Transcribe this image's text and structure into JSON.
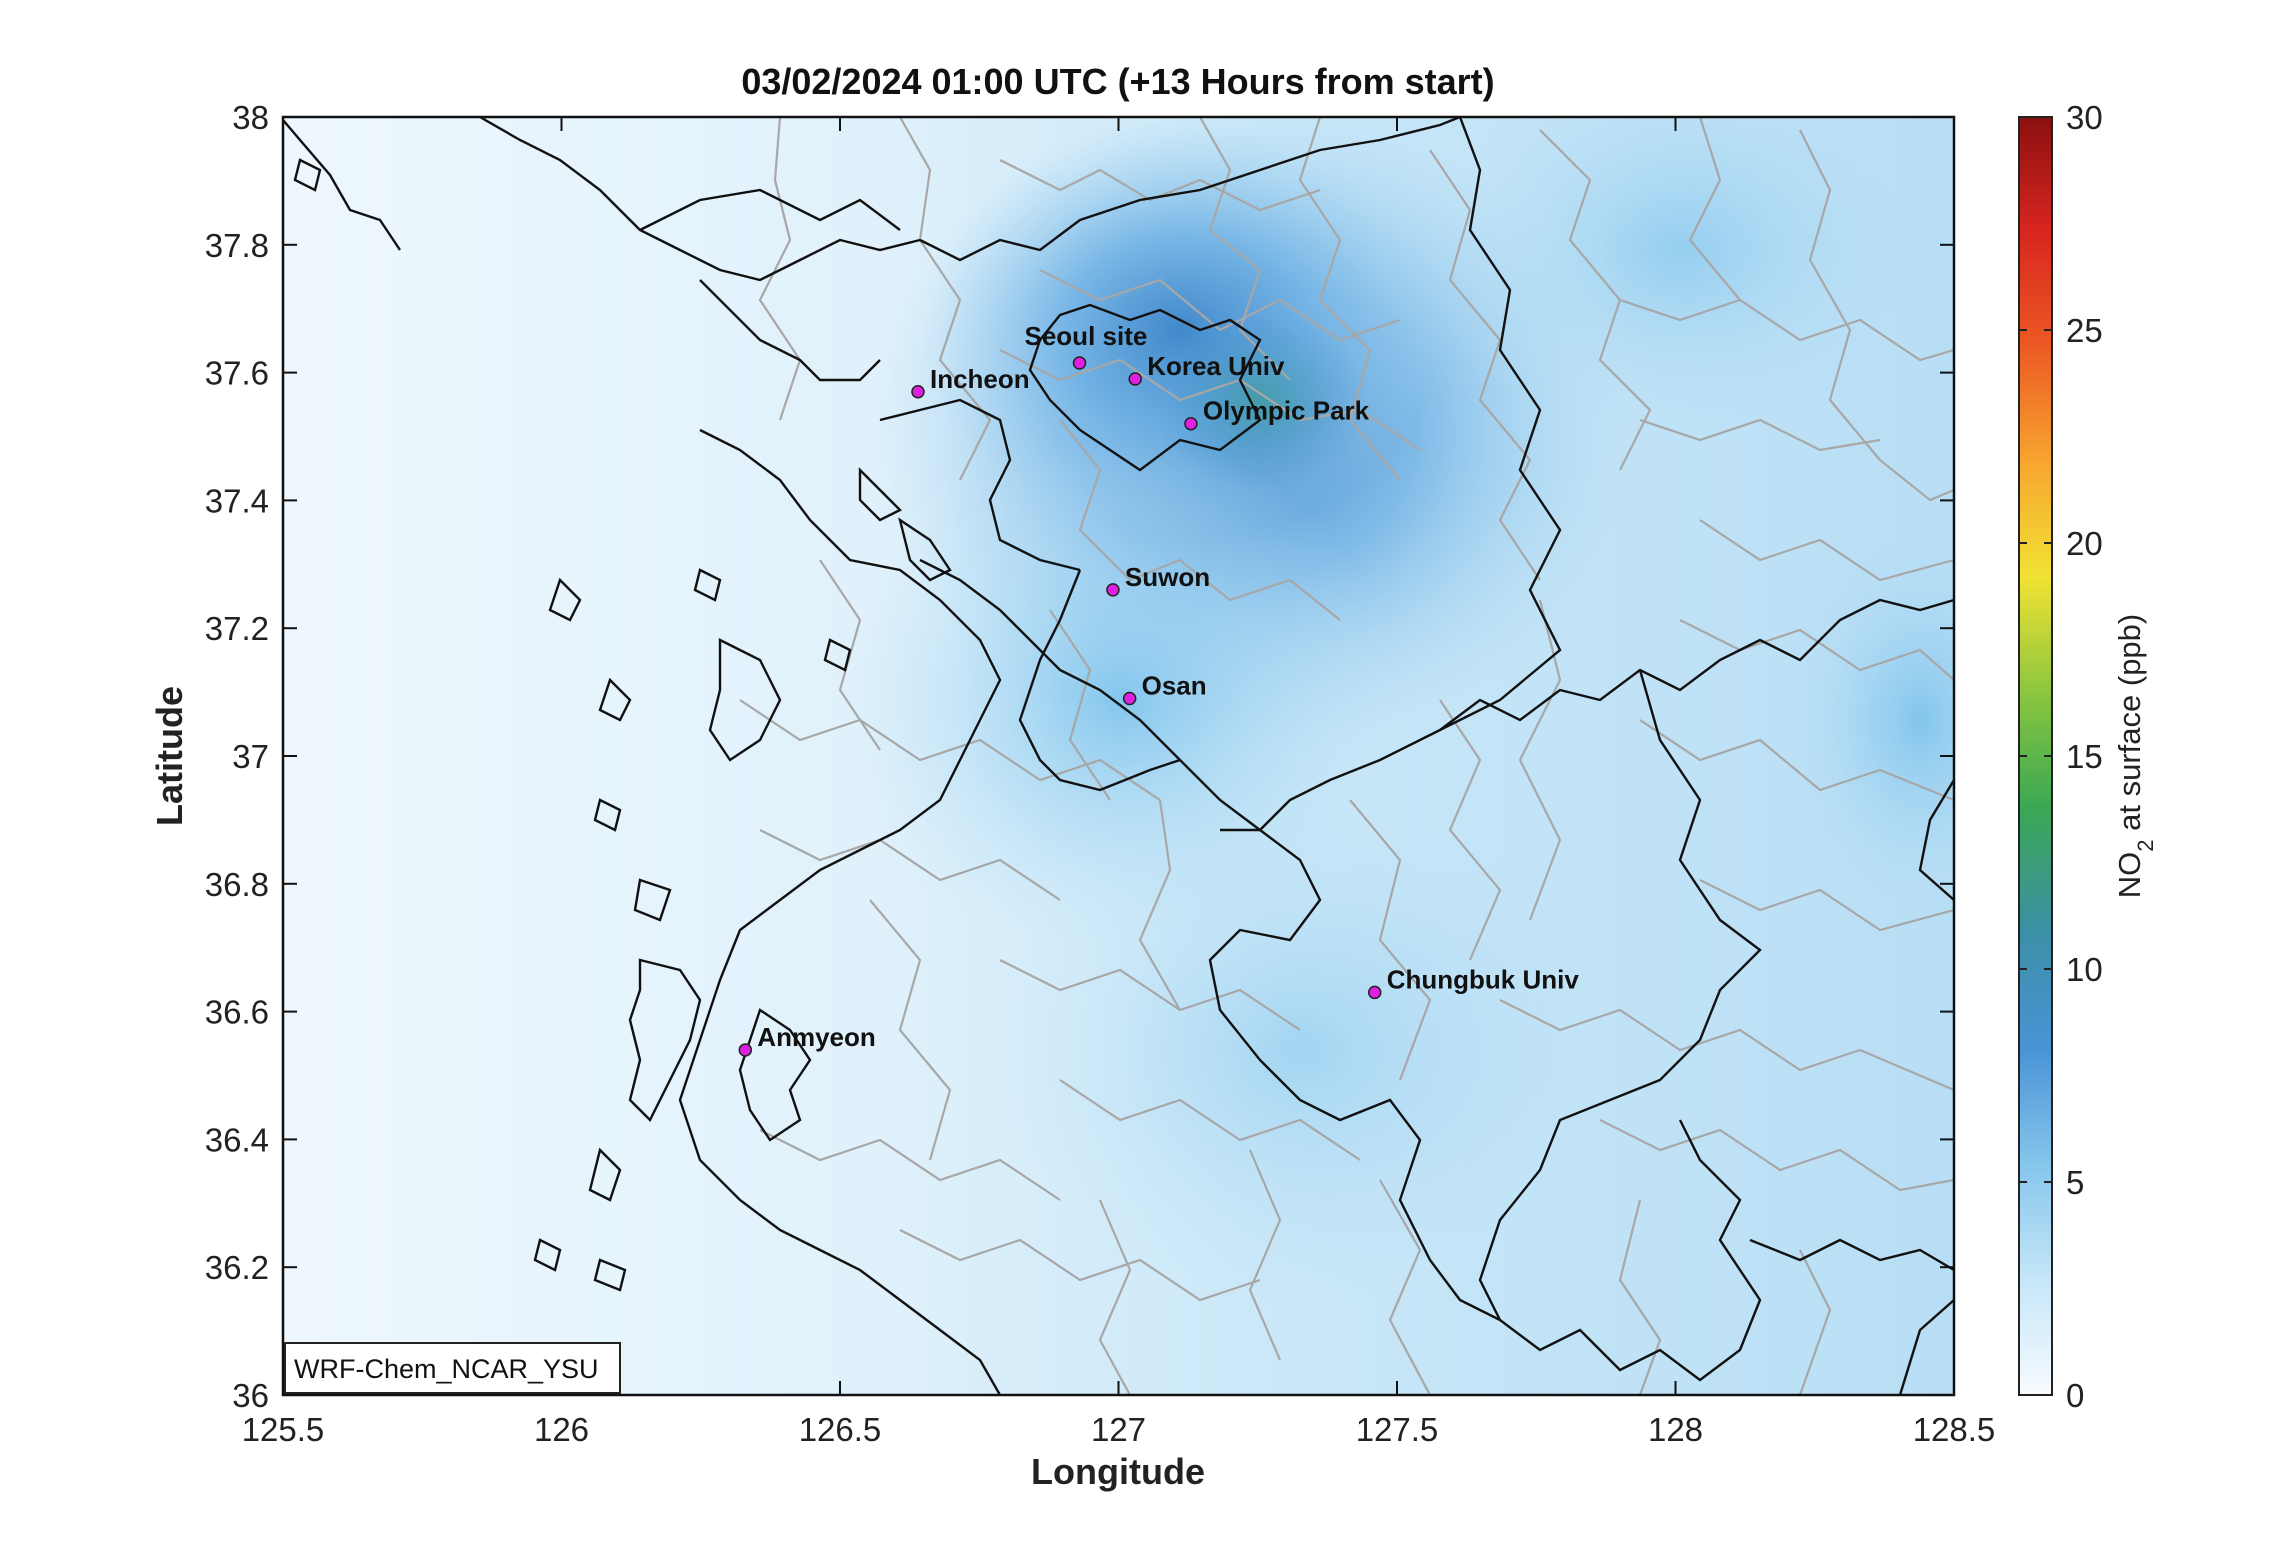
{
  "title": "03/02/2024 01:00 UTC (+13 Hours from start)",
  "map": {
    "xlabel": "Longitude",
    "ylabel": "Latitude",
    "lon_range": [
      125.5,
      128.5
    ],
    "lat_range": [
      36,
      38
    ],
    "x_ticks": [
      "125.5",
      "126",
      "126.5",
      "127",
      "127.5",
      "128",
      "128.5"
    ],
    "y_ticks": [
      "38",
      "37.8",
      "37.6",
      "37.4",
      "37.2",
      "37",
      "36.8",
      "36.6",
      "36.4",
      "36.2",
      "36"
    ],
    "model_label": "WRF-Chem_NCAR_YSU",
    "variable": "NO2 at surface (ppb)",
    "colormap_colors": [
      "#f3f9ff",
      "#bfe3f7",
      "#86c8ee",
      "#4a9edb",
      "#2f8fb7",
      "#3fa84b",
      "#f2e234",
      "#f5a623",
      "#e8401f",
      "#8b1010"
    ],
    "sites": [
      {
        "name": "Seoul site",
        "lon": 126.93,
        "lat": 37.615
      },
      {
        "name": "Korea Univ",
        "lon": 127.03,
        "lat": 37.59
      },
      {
        "name": "Incheon",
        "lon": 126.64,
        "lat": 37.57
      },
      {
        "name": "Olympic Park",
        "lon": 127.13,
        "lat": 37.52
      },
      {
        "name": "Suwon",
        "lon": 126.99,
        "lat": 37.26
      },
      {
        "name": "Osan",
        "lon": 127.02,
        "lat": 37.09
      },
      {
        "name": "Chungbuk Univ",
        "lon": 127.46,
        "lat": 36.63
      },
      {
        "name": "Anmyeon",
        "lon": 126.33,
        "lat": 36.54
      }
    ],
    "site_marker_color": "#e020e0"
  },
  "colorbar": {
    "min": 0,
    "max": 30,
    "ticks": [
      "0",
      "5",
      "10",
      "15",
      "20",
      "25",
      "30"
    ],
    "label_main": "NO",
    "label_sub": "2",
    "label_rest": " at surface (ppb)",
    "colors": [
      "#f7fbff",
      "#c6e6f8",
      "#86c6ec",
      "#4a94d6",
      "#3c8fa8",
      "#3aa853",
      "#8cc63f",
      "#f2e234",
      "#f7a530",
      "#ec5a24",
      "#d8261f",
      "#8b1010"
    ]
  }
}
